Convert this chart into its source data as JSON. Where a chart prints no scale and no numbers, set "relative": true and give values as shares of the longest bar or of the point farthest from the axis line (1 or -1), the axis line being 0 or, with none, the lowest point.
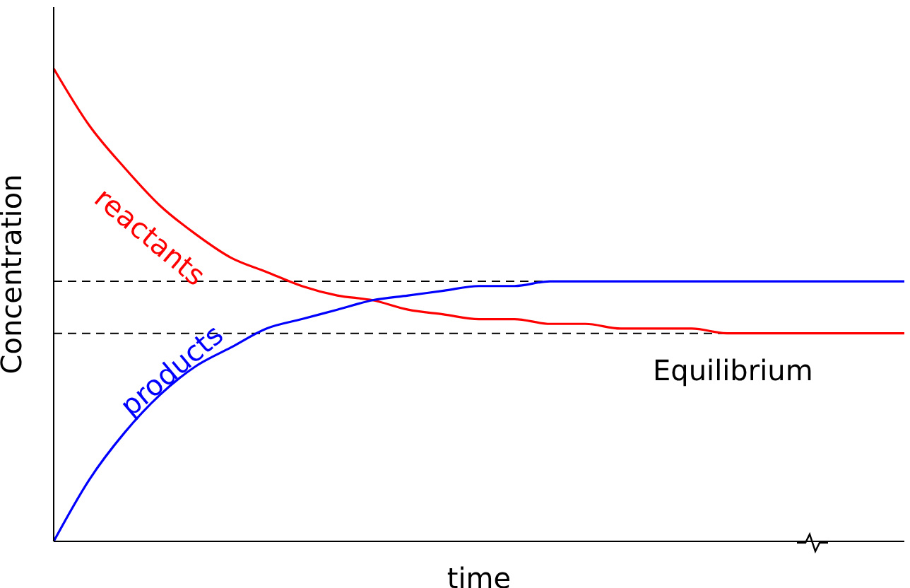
{
  "chart_data": {
    "type": "line",
    "relative": true,
    "xlabel": "time",
    "ylabel": "Concentration",
    "categories": [
      null,
      null,
      null,
      null,
      null,
      null,
      null,
      null,
      null,
      null,
      null,
      null,
      null,
      null,
      null,
      null,
      null,
      null,
      null,
      null,
      null,
      null,
      null,
      null,
      null
    ],
    "series": [
      {
        "name": "reactants",
        "color": "#ff0000",
        "values": [
          1,
          0.88,
          0.79,
          0.71,
          0.65,
          0.6,
          0.57,
          0.54,
          0.52,
          0.51,
          0.49,
          0.48,
          0.47,
          0.47,
          0.46,
          0.46,
          0.45,
          0.45,
          0.45,
          0.44,
          0.44,
          0.44,
          0.44,
          0.44,
          0.44
        ]
      },
      {
        "name": "products",
        "color": "#0000ff",
        "values": [
          0,
          0.13,
          0.23,
          0.31,
          0.37,
          0.41,
          0.45,
          0.47,
          0.49,
          0.51,
          0.52,
          0.53,
          0.54,
          0.54,
          0.55,
          0.55,
          0.55,
          0.55,
          0.55,
          0.55,
          0.55,
          0.55,
          0.55,
          0.55,
          0.55
        ]
      }
    ],
    "ref_lines": [
      {
        "axis": "y",
        "value": 0.55,
        "color": "#000000",
        "line_style": "dashed"
      },
      {
        "axis": "y",
        "value": 0.44,
        "color": "#000000",
        "line_style": "dashed"
      }
    ],
    "annotations": [
      "Equilibrium"
    ],
    "legend": false,
    "grid": false,
    "marker": "none",
    "line_style": "solid"
  }
}
